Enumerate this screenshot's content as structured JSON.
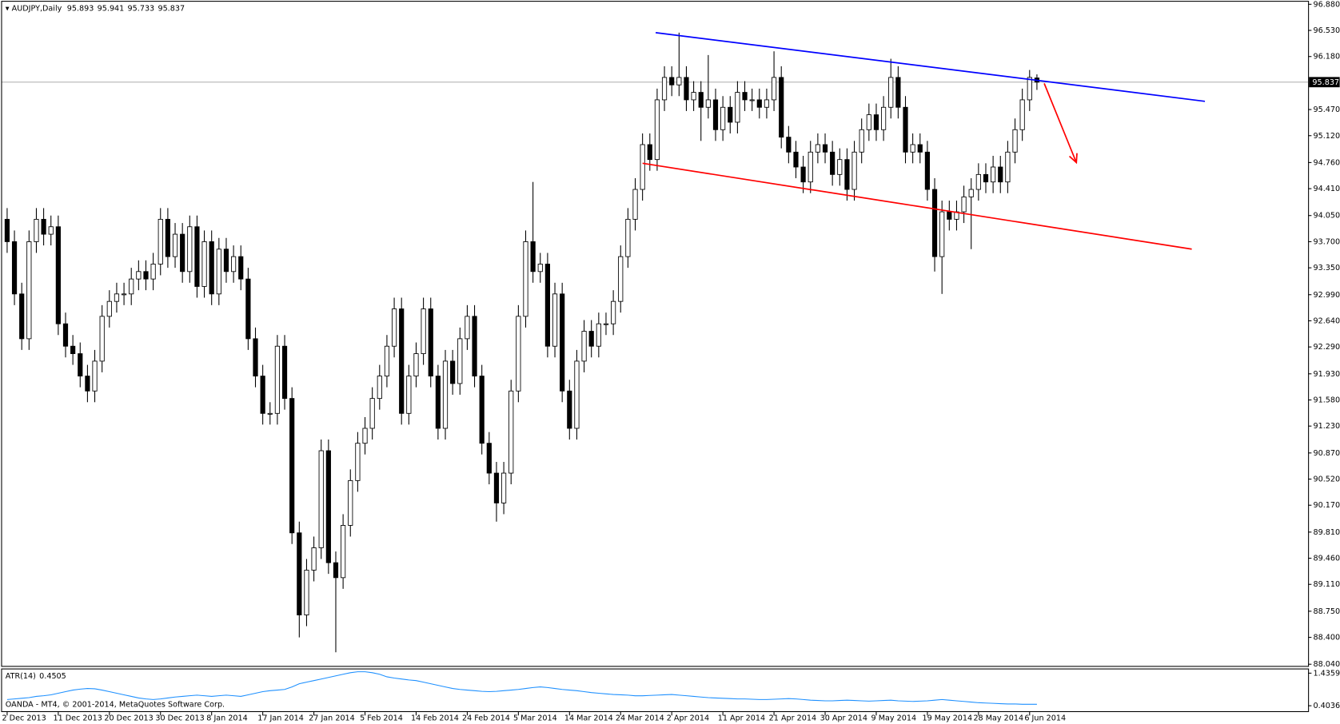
{
  "chart_data": {
    "type": "candlestick",
    "symbol": "AUDJPY,Daily",
    "categories": [
      "2 Dec 2013",
      null,
      null,
      null,
      null,
      null,
      null,
      "11 Dec 2013",
      null,
      null,
      null,
      null,
      null,
      null,
      "20 Dec 2013",
      null,
      null,
      null,
      null,
      null,
      null,
      "30 Dec 2013",
      null,
      null,
      null,
      null,
      null,
      null,
      "8 Jan 2014",
      null,
      null,
      null,
      null,
      null,
      null,
      "17 Jan 2014",
      null,
      null,
      null,
      null,
      null,
      null,
      "27 Jan 2014",
      null,
      null,
      null,
      null,
      null,
      null,
      "5 Feb 2014",
      null,
      null,
      null,
      null,
      null,
      null,
      "14 Feb 2014",
      null,
      null,
      null,
      null,
      null,
      null,
      "24 Feb 2014",
      null,
      null,
      null,
      null,
      null,
      null,
      "5 Mar 2014",
      null,
      null,
      null,
      null,
      null,
      null,
      "14 Mar 2014",
      null,
      null,
      null,
      null,
      null,
      null,
      "24 Mar 2014",
      null,
      null,
      null,
      null,
      null,
      null,
      "2 Apr 2014",
      null,
      null,
      null,
      null,
      null,
      null,
      "11 Apr 2014",
      null,
      null,
      null,
      null,
      null,
      null,
      "21 Apr 2014",
      null,
      null,
      null,
      null,
      null,
      null,
      "30 Apr 2014",
      null,
      null,
      null,
      null,
      null,
      null,
      "9 May 2014",
      null,
      null,
      null,
      null,
      null,
      null,
      "19 May 2014",
      null,
      null,
      null,
      null,
      null,
      null,
      "28 May 2014",
      null,
      null,
      null,
      null,
      null,
      null,
      "6 Jun 2014",
      null
    ],
    "candles": [
      [
        94.0,
        94.15,
        93.55,
        93.7
      ],
      [
        93.7,
        93.85,
        92.85,
        93.0
      ],
      [
        93.0,
        93.15,
        92.25,
        92.4
      ],
      [
        92.4,
        93.85,
        92.25,
        93.7
      ],
      [
        93.7,
        94.15,
        93.55,
        94.0
      ],
      [
        94.0,
        94.15,
        93.65,
        93.8
      ],
      [
        93.8,
        94.05,
        93.65,
        93.9
      ],
      [
        93.9,
        94.05,
        92.45,
        92.6
      ],
      [
        92.6,
        92.75,
        92.15,
        92.3
      ],
      [
        92.3,
        92.45,
        92.05,
        92.2
      ],
      [
        92.2,
        92.35,
        91.75,
        91.9
      ],
      [
        91.9,
        92.05,
        91.55,
        91.7
      ],
      [
        91.7,
        92.25,
        91.55,
        92.1
      ],
      [
        92.1,
        92.85,
        91.95,
        92.7
      ],
      [
        92.7,
        93.05,
        92.55,
        92.9
      ],
      [
        92.9,
        93.15,
        92.75,
        93.0
      ],
      [
        93.0,
        93.15,
        92.85,
        93.0
      ],
      [
        93.0,
        93.35,
        92.85,
        93.2
      ],
      [
        93.2,
        93.45,
        93.05,
        93.3
      ],
      [
        93.3,
        93.45,
        93.05,
        93.2
      ],
      [
        93.2,
        93.55,
        93.05,
        93.4
      ],
      [
        93.4,
        94.15,
        93.25,
        94.0
      ],
      [
        94.0,
        94.15,
        93.35,
        93.5
      ],
      [
        93.5,
        93.95,
        93.35,
        93.8
      ],
      [
        93.8,
        93.95,
        93.15,
        93.3
      ],
      [
        93.3,
        94.05,
        93.15,
        93.9
      ],
      [
        93.9,
        94.05,
        92.95,
        93.1
      ],
      [
        93.1,
        93.85,
        92.95,
        93.7
      ],
      [
        93.7,
        93.85,
        92.85,
        93.0
      ],
      [
        93.0,
        93.75,
        92.85,
        93.6
      ],
      [
        93.6,
        93.75,
        93.15,
        93.3
      ],
      [
        93.3,
        93.65,
        93.15,
        93.5
      ],
      [
        93.5,
        93.65,
        93.05,
        93.2
      ],
      [
        93.2,
        93.35,
        92.25,
        92.4
      ],
      [
        92.4,
        92.55,
        91.75,
        91.9
      ],
      [
        91.9,
        92.05,
        91.25,
        91.4
      ],
      [
        91.4,
        91.55,
        91.25,
        91.4
      ],
      [
        91.4,
        92.45,
        91.25,
        92.3
      ],
      [
        92.3,
        92.45,
        91.45,
        91.6
      ],
      [
        91.6,
        91.75,
        89.65,
        89.8
      ],
      [
        89.8,
        89.95,
        88.4,
        88.7
      ],
      [
        88.7,
        89.45,
        88.55,
        89.3
      ],
      [
        89.3,
        89.75,
        89.15,
        89.6
      ],
      [
        89.6,
        91.05,
        89.45,
        90.9
      ],
      [
        90.9,
        91.05,
        89.25,
        89.4
      ],
      [
        89.4,
        89.55,
        88.2,
        89.2
      ],
      [
        89.2,
        90.05,
        89.05,
        89.9
      ],
      [
        89.9,
        90.65,
        89.75,
        90.5
      ],
      [
        90.5,
        91.15,
        90.35,
        91.0
      ],
      [
        91.0,
        91.35,
        90.85,
        91.2
      ],
      [
        91.2,
        91.75,
        91.05,
        91.6
      ],
      [
        91.6,
        92.05,
        91.45,
        91.9
      ],
      [
        91.9,
        92.45,
        91.75,
        92.3
      ],
      [
        92.3,
        92.95,
        92.15,
        92.8
      ],
      [
        92.8,
        92.95,
        91.25,
        91.4
      ],
      [
        91.4,
        92.05,
        91.25,
        91.9
      ],
      [
        91.9,
        92.35,
        91.75,
        92.2
      ],
      [
        92.2,
        92.95,
        92.05,
        92.8
      ],
      [
        92.8,
        92.95,
        91.75,
        91.9
      ],
      [
        91.9,
        92.05,
        91.05,
        91.2
      ],
      [
        91.2,
        92.25,
        91.05,
        92.1
      ],
      [
        92.1,
        92.25,
        91.65,
        91.8
      ],
      [
        91.8,
        92.55,
        91.65,
        92.4
      ],
      [
        92.4,
        92.85,
        92.25,
        92.7
      ],
      [
        92.7,
        92.85,
        91.75,
        91.9
      ],
      [
        91.9,
        92.05,
        90.85,
        91.0
      ],
      [
        91.0,
        91.15,
        90.45,
        90.6
      ],
      [
        90.6,
        90.75,
        89.95,
        90.2
      ],
      [
        90.2,
        90.75,
        90.05,
        90.6
      ],
      [
        90.6,
        91.85,
        90.45,
        91.7
      ],
      [
        91.7,
        92.85,
        91.55,
        92.7
      ],
      [
        92.7,
        93.85,
        92.55,
        93.7
      ],
      [
        93.7,
        94.5,
        93.15,
        93.3
      ],
      [
        93.3,
        93.55,
        93.15,
        93.4
      ],
      [
        93.4,
        93.55,
        92.15,
        92.3
      ],
      [
        92.3,
        93.15,
        92.15,
        93.0
      ],
      [
        93.0,
        93.15,
        91.55,
        91.7
      ],
      [
        91.7,
        91.85,
        91.05,
        91.2
      ],
      [
        91.2,
        92.25,
        91.05,
        92.1
      ],
      [
        92.1,
        92.65,
        91.95,
        92.5
      ],
      [
        92.5,
        92.65,
        92.15,
        92.3
      ],
      [
        92.3,
        92.75,
        92.15,
        92.6
      ],
      [
        92.6,
        92.75,
        92.45,
        92.6
      ],
      [
        92.6,
        93.05,
        92.45,
        92.9
      ],
      [
        92.9,
        93.65,
        92.75,
        93.5
      ],
      [
        93.5,
        94.15,
        93.35,
        94.0
      ],
      [
        94.0,
        94.55,
        93.85,
        94.4
      ],
      [
        94.4,
        95.15,
        94.25,
        95.0
      ],
      [
        95.0,
        95.15,
        94.65,
        94.8
      ],
      [
        94.8,
        95.75,
        94.65,
        95.6
      ],
      [
        95.6,
        96.05,
        95.45,
        95.9
      ],
      [
        95.9,
        96.05,
        95.65,
        95.8
      ],
      [
        95.8,
        96.5,
        95.65,
        95.9
      ],
      [
        95.9,
        96.05,
        95.45,
        95.6
      ],
      [
        95.6,
        95.85,
        95.45,
        95.7
      ],
      [
        95.7,
        95.85,
        95.05,
        95.5
      ],
      [
        95.5,
        96.2,
        95.35,
        95.6
      ],
      [
        95.6,
        95.75,
        95.05,
        95.2
      ],
      [
        95.2,
        95.65,
        95.05,
        95.5
      ],
      [
        95.5,
        95.65,
        95.15,
        95.3
      ],
      [
        95.3,
        95.85,
        95.15,
        95.7
      ],
      [
        95.7,
        95.85,
        95.45,
        95.6
      ],
      [
        95.6,
        95.75,
        95.45,
        95.6
      ],
      [
        95.6,
        95.75,
        95.35,
        95.5
      ],
      [
        95.5,
        95.75,
        95.35,
        95.6
      ],
      [
        95.6,
        96.25,
        95.45,
        95.9
      ],
      [
        95.9,
        96.05,
        94.95,
        95.1
      ],
      [
        95.1,
        95.25,
        94.75,
        94.9
      ],
      [
        94.9,
        95.05,
        94.55,
        94.7
      ],
      [
        94.7,
        94.85,
        94.35,
        94.5
      ],
      [
        94.5,
        95.05,
        94.35,
        94.9
      ],
      [
        94.9,
        95.15,
        94.75,
        95.0
      ],
      [
        95.0,
        95.15,
        94.75,
        94.9
      ],
      [
        94.9,
        95.05,
        94.45,
        94.6
      ],
      [
        94.6,
        94.95,
        94.45,
        94.8
      ],
      [
        94.8,
        94.95,
        94.25,
        94.4
      ],
      [
        94.4,
        95.05,
        94.25,
        94.9
      ],
      [
        94.9,
        95.35,
        94.75,
        95.2
      ],
      [
        95.2,
        95.55,
        95.05,
        95.4
      ],
      [
        95.4,
        95.55,
        95.05,
        95.2
      ],
      [
        95.2,
        95.65,
        95.05,
        95.5
      ],
      [
        95.5,
        96.15,
        95.35,
        95.9
      ],
      [
        95.9,
        96.05,
        95.35,
        95.5
      ],
      [
        95.5,
        95.65,
        94.75,
        94.9
      ],
      [
        94.9,
        95.15,
        94.75,
        95.0
      ],
      [
        95.0,
        95.15,
        94.75,
        94.9
      ],
      [
        94.9,
        95.05,
        94.25,
        94.4
      ],
      [
        94.4,
        94.55,
        93.3,
        93.5
      ],
      [
        93.5,
        94.25,
        93.0,
        94.1
      ],
      [
        94.1,
        94.25,
        93.85,
        94.0
      ],
      [
        94.0,
        94.25,
        93.85,
        94.1
      ],
      [
        94.1,
        94.45,
        93.95,
        94.3
      ],
      [
        94.3,
        94.55,
        93.6,
        94.4
      ],
      [
        94.4,
        94.75,
        94.25,
        94.6
      ],
      [
        94.6,
        94.75,
        94.35,
        94.5
      ],
      [
        94.5,
        94.85,
        94.35,
        94.7
      ],
      [
        94.7,
        94.85,
        94.35,
        94.5
      ],
      [
        94.5,
        95.05,
        94.35,
        94.9
      ],
      [
        94.9,
        95.35,
        94.75,
        95.2
      ],
      [
        95.2,
        95.75,
        95.05,
        95.6
      ],
      [
        95.6,
        96.0,
        95.45,
        95.9
      ],
      [
        95.893,
        95.941,
        95.733,
        95.837
      ]
    ],
    "up_color": "#ffffff",
    "down_color": "#000000",
    "ylim": [
      88.04,
      96.88
    ],
    "yticks": [
      {
        "value": 96.88,
        "label": "96.880"
      },
      {
        "value": 96.53,
        "label": "96.530"
      },
      {
        "value": 96.18,
        "label": "96.180"
      },
      {
        "value": 95.47,
        "label": "95.470"
      },
      {
        "value": 95.12,
        "label": "95.120"
      },
      {
        "value": 94.76,
        "label": "94.760"
      },
      {
        "value": 94.41,
        "label": "94.410"
      },
      {
        "value": 94.05,
        "label": "94.050"
      },
      {
        "value": 93.7,
        "label": "93.700"
      },
      {
        "value": 93.35,
        "label": "93.350"
      },
      {
        "value": 92.99,
        "label": "92.990"
      },
      {
        "value": 92.64,
        "label": "92.640"
      },
      {
        "value": 92.29,
        "label": "92.290"
      },
      {
        "value": 91.93,
        "label": "91.930"
      },
      {
        "value": 91.58,
        "label": "91.580"
      },
      {
        "value": 91.23,
        "label": "91.230"
      },
      {
        "value": 90.87,
        "label": "90.870"
      },
      {
        "value": 90.52,
        "label": "90.520"
      },
      {
        "value": 90.17,
        "label": "90.170"
      },
      {
        "value": 89.81,
        "label": "89.810"
      },
      {
        "value": 89.46,
        "label": "89.460"
      },
      {
        "value": 89.11,
        "label": "89.110"
      },
      {
        "value": 88.75,
        "label": "88.750"
      },
      {
        "value": 88.4,
        "label": "88.400"
      },
      {
        "value": 88.04,
        "label": "88.040"
      }
    ],
    "trendlines": [
      {
        "color": "#0000ff",
        "start": [
          88.8,
          96.5
        ],
        "end": [
          164,
          95.58
        ]
      },
      {
        "color": "#ff0000",
        "start": [
          87,
          94.75
        ],
        "end": [
          162.2,
          93.6
        ]
      }
    ],
    "arrow": {
      "color": "#ff0000",
      "start": [
        142,
        95.82
      ],
      "end": [
        146.4,
        94.76
      ]
    },
    "indicator": {
      "type": "line",
      "name": "ATR(14)",
      "color": "#1e90ff",
      "values": [
        0.6,
        0.62,
        0.64,
        0.66,
        0.7,
        0.72,
        0.75,
        0.8,
        0.85,
        0.9,
        0.93,
        0.95,
        0.94,
        0.9,
        0.85,
        0.8,
        0.75,
        0.7,
        0.65,
        0.62,
        0.6,
        0.62,
        0.65,
        0.68,
        0.7,
        0.72,
        0.74,
        0.72,
        0.7,
        0.72,
        0.74,
        0.72,
        0.7,
        0.75,
        0.8,
        0.85,
        0.88,
        0.9,
        0.92,
        1.0,
        1.1,
        1.15,
        1.2,
        1.25,
        1.3,
        1.35,
        1.4,
        1.45,
        1.48,
        1.48,
        1.45,
        1.4,
        1.32,
        1.28,
        1.25,
        1.22,
        1.2,
        1.15,
        1.1,
        1.05,
        1.0,
        0.95,
        0.92,
        0.9,
        0.88,
        0.86,
        0.85,
        0.86,
        0.88,
        0.9,
        0.92,
        0.95,
        0.98,
        1.0,
        0.98,
        0.95,
        0.92,
        0.9,
        0.88,
        0.85,
        0.82,
        0.8,
        0.78,
        0.76,
        0.75,
        0.74,
        0.72,
        0.72,
        0.73,
        0.74,
        0.75,
        0.76,
        0.74,
        0.72,
        0.7,
        0.68,
        0.66,
        0.65,
        0.64,
        0.63,
        0.62,
        0.62,
        0.61,
        0.6,
        0.6,
        0.61,
        0.62,
        0.63,
        0.62,
        0.6,
        0.58,
        0.57,
        0.56,
        0.56,
        0.57,
        0.58,
        0.57,
        0.56,
        0.55,
        0.56,
        0.57,
        0.58,
        0.56,
        0.55,
        0.54,
        0.55,
        0.56,
        0.58,
        0.6,
        0.58,
        0.56,
        0.54,
        0.52,
        0.5,
        0.49,
        0.48,
        0.47,
        0.46,
        0.46,
        0.45,
        0.45,
        0.4505
      ],
      "ylim": [
        0.231,
        1.556
      ],
      "yticks": [
        1.4359,
        0.4036
      ]
    },
    "footer": "OANDA - MT4, © 2001-2014, MetaQuotes Software Corp."
  }
}
